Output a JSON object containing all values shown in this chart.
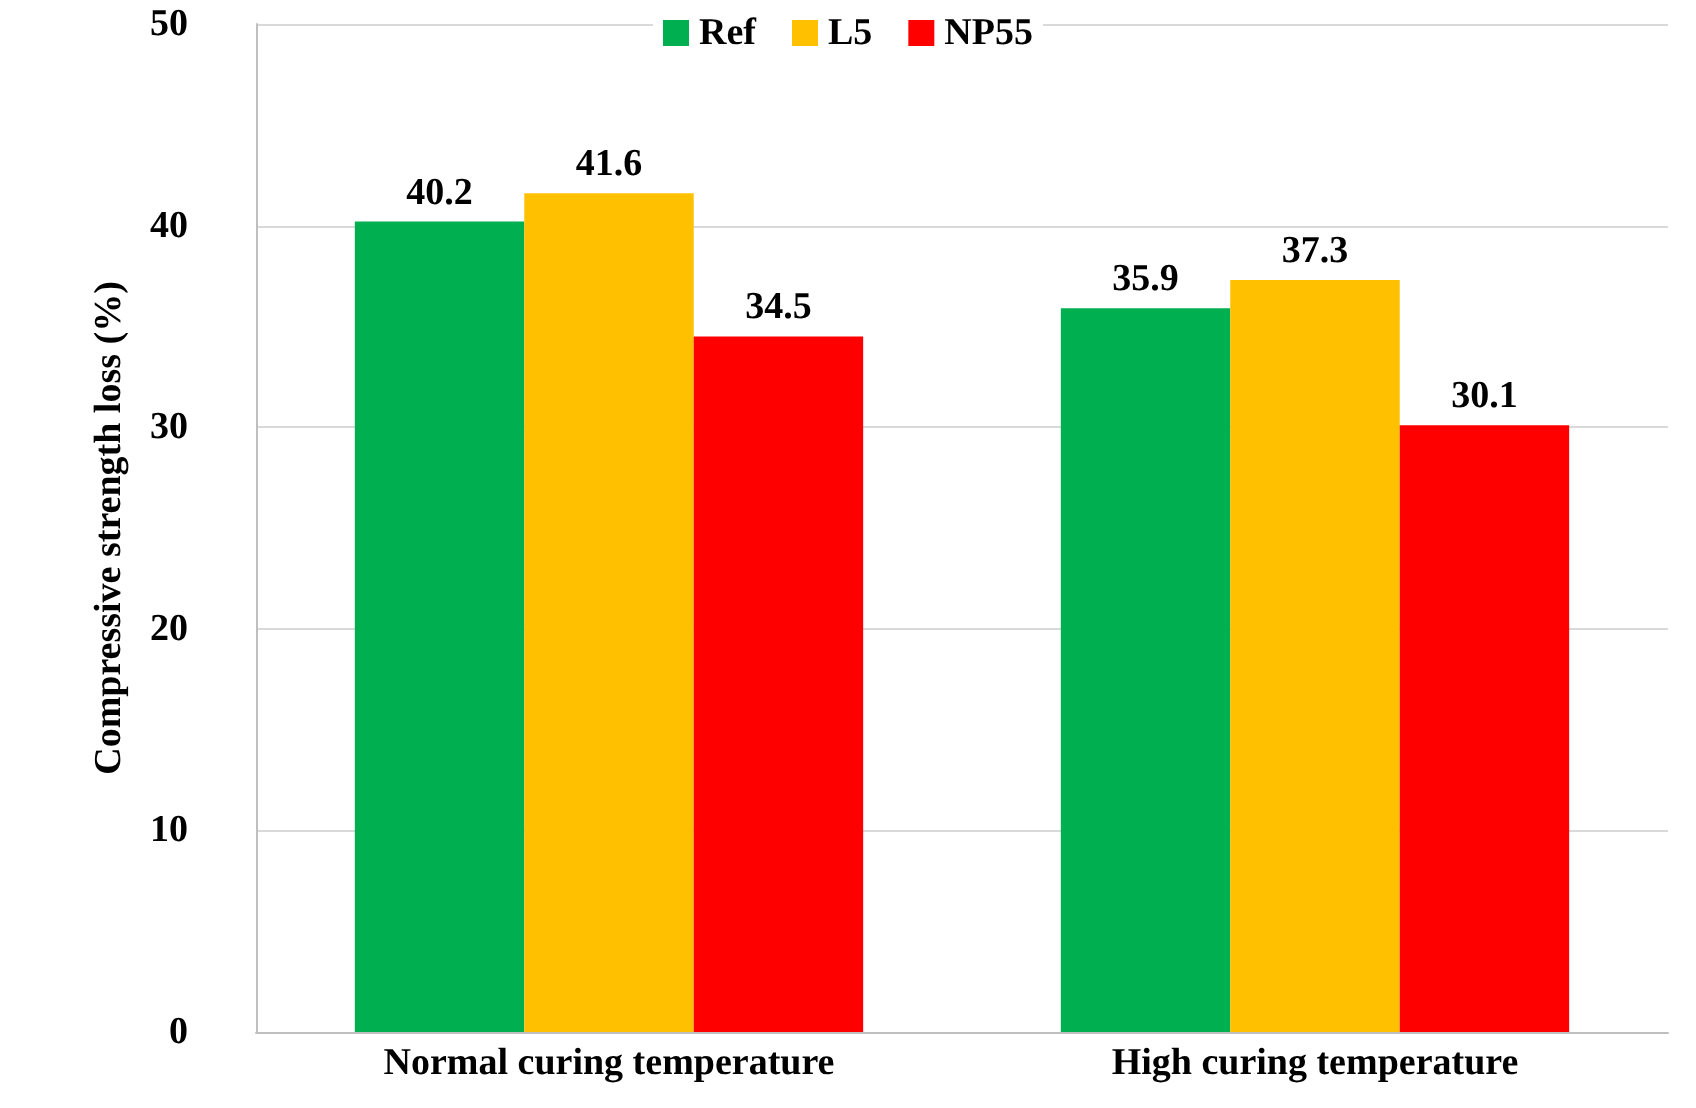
{
  "chart_data": {
    "type": "bar",
    "ylabel": "Compressive strength loss (%)",
    "categories": [
      "Normal curing temperature",
      "High curing temperature"
    ],
    "series": [
      {
        "name": "Ref",
        "color": "#00b050",
        "values": [
          40.2,
          35.9
        ]
      },
      {
        "name": "L5",
        "color": "#ffc000",
        "values": [
          41.6,
          37.3
        ]
      },
      {
        "name": "NP55",
        "color": "#ff0000",
        "values": [
          34.5,
          30.1
        ]
      }
    ],
    "ylim": [
      0,
      50
    ],
    "yticks": [
      0,
      10,
      20,
      30,
      40,
      50
    ],
    "grid": "y",
    "legend": "top",
    "data_labels": true
  }
}
